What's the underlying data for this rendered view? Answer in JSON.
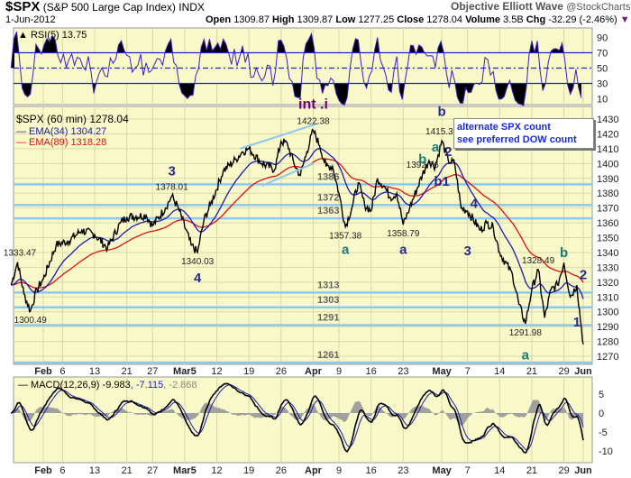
{
  "header": {
    "symbol": "$SPX",
    "name": "(S&P 500 Large Cap Index)",
    "exchange": "INDX",
    "date": "1-Jun-2012",
    "brand": "Objective Elliott Wave",
    "source": "@StockCharts.com",
    "open_l": "Open",
    "open": "1309.87",
    "high_l": "High",
    "high": "1309.87",
    "low_l": "Low",
    "low": "1277.25",
    "close_l": "Close",
    "close": "1278.04",
    "vol_l": "Volume",
    "vol": "3.5B",
    "chg_l": "Chg",
    "chg": "-32.29 (-2.46%)"
  },
  "note": {
    "line1": "alternate SPX count",
    "line2": "see preferred DOW count"
  },
  "colors": {
    "panel": "#f8f8c8",
    "grid": "#d8d8a8",
    "price": "#000000",
    "ema34": "#1b1bb0",
    "ema89": "#e01010",
    "support": "#8ec8f0",
    "rsi": "#3a20c8",
    "macd_hist": "#a0a0a0",
    "wave_teal": "#1a7a7a",
    "wave_navy": "#2a2a8a",
    "wave_purple": "#700070"
  },
  "chart_data": [
    {
      "type": "line",
      "panel": "RSI",
      "legend": "RSI(5) 13.75",
      "ylim": [
        0,
        100
      ],
      "ticks": [
        10,
        30,
        50,
        70,
        90
      ],
      "levels": [
        30,
        50,
        70
      ]
    },
    {
      "type": "line",
      "panel": "price",
      "legend": "$SPX (60 min) 1278.04",
      "ema": [
        {
          "name": "EMA(34) 1304.27",
          "period": 34
        },
        {
          "name": "EMA(89) 1318.28",
          "period": 89
        }
      ],
      "ylim": [
        1265,
        1432
      ],
      "ticks": [
        1270,
        1280,
        1290,
        1300,
        1310,
        1320,
        1330,
        1340,
        1350,
        1360,
        1370,
        1380,
        1390,
        1400,
        1410,
        1420,
        1430
      ],
      "x_ticks": [
        "Feb",
        "6",
        "13",
        "21",
        "27",
        "Mar5",
        "12",
        "19",
        "26",
        "Apr",
        "9",
        "16",
        "23",
        "May",
        "7",
        "14",
        "21",
        "29",
        "Jun"
      ],
      "x_tick_dates": [
        "2012-02-01",
        "2012-02-06",
        "2012-02-13",
        "2012-02-21",
        "2012-02-27",
        "2012-03-05",
        "2012-03-12",
        "2012-03-19",
        "2012-03-26",
        "2012-04-02",
        "2012-04-09",
        "2012-04-16",
        "2012-04-23",
        "2012-05-01",
        "2012-05-07",
        "2012-05-14",
        "2012-05-21",
        "2012-05-29",
        "2012-06-01"
      ],
      "points": [
        [
          "2012-01-25",
          1318
        ],
        [
          "2012-01-26",
          1333.47
        ],
        [
          "2012-01-27",
          1312
        ],
        [
          "2012-01-30",
          1300.49
        ],
        [
          "2012-01-31",
          1315
        ],
        [
          "2012-02-01",
          1322
        ],
        [
          "2012-02-03",
          1345
        ],
        [
          "2012-02-07",
          1348
        ],
        [
          "2012-02-09",
          1355
        ],
        [
          "2012-02-13",
          1352
        ],
        [
          "2012-02-15",
          1343
        ],
        [
          "2012-02-17",
          1360
        ],
        [
          "2012-02-21",
          1364
        ],
        [
          "2012-02-24",
          1365
        ],
        [
          "2012-02-27",
          1358
        ],
        [
          "2012-02-29",
          1370
        ],
        [
          "2012-03-01",
          1378.01
        ],
        [
          "2012-03-02",
          1370
        ],
        [
          "2012-03-06",
          1345
        ],
        [
          "2012-03-07",
          1340.03
        ],
        [
          "2012-03-08",
          1362
        ],
        [
          "2012-03-09",
          1372
        ],
        [
          "2012-03-13",
          1395
        ],
        [
          "2012-03-15",
          1403
        ],
        [
          "2012-03-16",
          1408
        ],
        [
          "2012-03-19",
          1410
        ],
        [
          "2012-03-21",
          1400
        ],
        [
          "2012-03-23",
          1396
        ],
        [
          "2012-03-26",
          1415
        ],
        [
          "2012-03-27",
          1413
        ],
        [
          "2012-03-28",
          1400
        ],
        [
          "2012-03-29",
          1392
        ],
        [
          "2012-03-30",
          1408
        ],
        [
          "2012-04-02",
          1422.38
        ],
        [
          "2012-04-03",
          1412
        ],
        [
          "2012-04-04",
          1398
        ],
        [
          "2012-04-05",
          1398
        ],
        [
          "2012-04-09",
          1380
        ],
        [
          "2012-04-10",
          1357.38
        ],
        [
          "2012-04-11",
          1370
        ],
        [
          "2012-04-12",
          1387
        ],
        [
          "2012-04-13",
          1372
        ],
        [
          "2012-04-16",
          1368
        ],
        [
          "2012-04-17",
          1390
        ],
        [
          "2012-04-18",
          1385
        ],
        [
          "2012-04-19",
          1377
        ],
        [
          "2012-04-20",
          1380
        ],
        [
          "2012-04-23",
          1358.79
        ],
        [
          "2012-04-24",
          1370
        ],
        [
          "2012-04-26",
          1392.76
        ],
        [
          "2012-04-27",
          1402
        ],
        [
          "2012-04-30",
          1398
        ],
        [
          "2012-05-01",
          1415.32
        ],
        [
          "2012-05-02",
          1402
        ],
        [
          "2012-05-03",
          1400
        ],
        [
          "2012-05-04",
          1370
        ],
        [
          "2012-05-07",
          1368
        ],
        [
          "2012-05-09",
          1355
        ],
        [
          "2012-05-10",
          1360
        ],
        [
          "2012-05-11",
          1357
        ],
        [
          "2012-05-14",
          1340
        ],
        [
          "2012-05-16",
          1325
        ],
        [
          "2012-05-17",
          1305
        ],
        [
          "2012-05-18",
          1291.98
        ],
        [
          "2012-05-21",
          1315
        ],
        [
          "2012-05-22",
          1328.49
        ],
        [
          "2012-05-23",
          1296
        ],
        [
          "2012-05-24",
          1315
        ],
        [
          "2012-05-25",
          1318
        ],
        [
          "2012-05-29",
          1333
        ],
        [
          "2012-05-30",
          1310
        ],
        [
          "2012-05-31",
          1318
        ],
        [
          "2012-06-01",
          1278.04
        ]
      ],
      "price_labels": [
        [
          "2012-01-26",
          1333.47,
          "1333.47"
        ],
        [
          "2012-01-30",
          1300.49,
          "1300.49"
        ],
        [
          "2012-03-01",
          1378.01,
          "1378.01"
        ],
        [
          "2012-03-07",
          1340.03,
          "1340.03"
        ],
        [
          "2012-04-02",
          1422.38,
          "1422.38"
        ],
        [
          "2012-04-10",
          1357.38,
          "1357.38"
        ],
        [
          "2012-04-23",
          1358.79,
          "1358.79"
        ],
        [
          "2012-04-26",
          1392.76,
          "1392.76"
        ],
        [
          "2012-05-01",
          1415.32,
          "1415.32"
        ],
        [
          "2012-05-18",
          1291.98,
          "1291.98"
        ],
        [
          "2012-05-22",
          1328.49,
          "1328.49"
        ]
      ],
      "support": [
        1386,
        1372,
        1363,
        1313,
        1303,
        1291,
        1261
      ],
      "waves": [
        [
          "2012-04-02",
          1430,
          "int .i",
          "purple"
        ],
        [
          "2012-03-01",
          1382,
          "3",
          "navy"
        ],
        [
          "2012-03-07",
          1328,
          "4",
          "navy"
        ],
        [
          "2012-04-10",
          1345,
          "a",
          "teal"
        ],
        [
          "2012-04-23",
          1345,
          "a",
          "navy"
        ],
        [
          "2012-04-26",
          1400,
          "b",
          "teal"
        ],
        [
          "2012-04-30",
          1408,
          "a",
          "teal"
        ],
        [
          "2012-05-01",
          1424,
          "b",
          "navy"
        ],
        [
          "2012-05-02",
          1405,
          "2",
          "navy"
        ],
        [
          "2012-05-01",
          1385,
          "b1",
          "navy"
        ],
        [
          "2012-05-08",
          1370,
          "4",
          "navy"
        ],
        [
          "2012-05-07",
          1338,
          "3",
          "navy"
        ],
        [
          "2012-05-18",
          1262,
          "a",
          "teal"
        ],
        [
          "2012-05-29",
          1337,
          "b",
          "teal"
        ],
        [
          "2012-06-01",
          1322,
          "2",
          "navy"
        ],
        [
          "2012-05-31",
          1290,
          "1",
          "navy"
        ]
      ]
    },
    {
      "type": "line",
      "panel": "MACD",
      "legend": "MACD(12,26,9)",
      "values": [
        "-9.983",
        "-7.115",
        "-2.868"
      ],
      "ylim": [
        -12,
        8
      ],
      "ticks": [
        -10,
        -5,
        0,
        5
      ]
    }
  ]
}
